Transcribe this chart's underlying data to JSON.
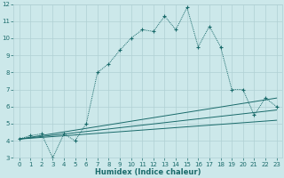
{
  "xlabel": "Humidex (Indice chaleur)",
  "bg_color": "#cce8ea",
  "grid_color": "#b0d0d4",
  "line_color": "#1a6b6b",
  "xlim": [
    -0.5,
    23.5
  ],
  "ylim": [
    3,
    12
  ],
  "xticks": [
    0,
    1,
    2,
    3,
    4,
    5,
    6,
    7,
    8,
    9,
    10,
    11,
    12,
    13,
    14,
    15,
    16,
    17,
    18,
    19,
    20,
    21,
    22,
    23
  ],
  "yticks": [
    3,
    4,
    5,
    6,
    7,
    8,
    9,
    10,
    11,
    12
  ],
  "series1_x": [
    0,
    1,
    2,
    3,
    4,
    5,
    6,
    7,
    8,
    9,
    10,
    11,
    12,
    13,
    14,
    15,
    16,
    17,
    18,
    19,
    20,
    21,
    22,
    23
  ],
  "series1_y": [
    4.1,
    4.3,
    4.4,
    3.0,
    4.4,
    4.0,
    5.0,
    8.0,
    8.5,
    9.3,
    10.0,
    10.5,
    10.4,
    11.3,
    10.5,
    11.8,
    9.5,
    10.7,
    9.5,
    7.0,
    7.0,
    5.5,
    6.5,
    6.0
  ],
  "series2_x": [
    0,
    23
  ],
  "series2_y": [
    4.1,
    6.5
  ],
  "series3_x": [
    0,
    23
  ],
  "series3_y": [
    4.1,
    5.8
  ],
  "series4_x": [
    0,
    23
  ],
  "series4_y": [
    4.1,
    5.2
  ],
  "xlabel_fontsize": 6.0,
  "tick_fontsize": 5.0
}
